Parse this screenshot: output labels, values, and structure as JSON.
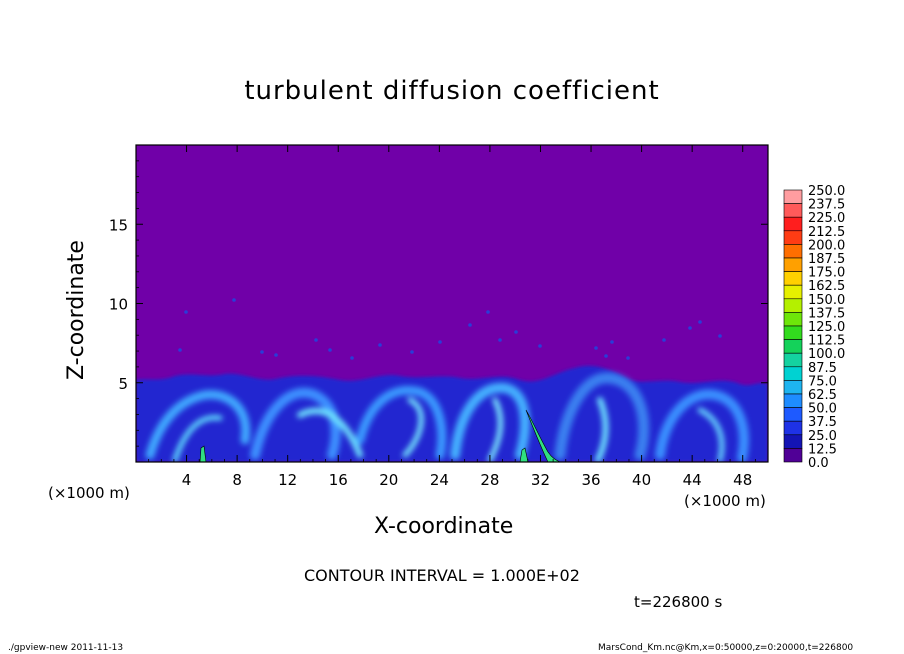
{
  "chart_data": {
    "type": "heatmap",
    "title": "turbulent diffusion coefficient",
    "xlabel": "X-coordinate",
    "ylabel": "Z-coordinate",
    "x_unit_label": "(×1000 m)",
    "x_unit_label_right": "(×1000 m)",
    "xlim": [
      0,
      50
    ],
    "ylim": [
      0,
      20
    ],
    "x_ticks": [
      "4",
      "8",
      "12",
      "16",
      "20",
      "24",
      "28",
      "32",
      "36",
      "40",
      "44",
      "48"
    ],
    "y_ticks": [
      "5",
      "10",
      "15"
    ],
    "x_tick_values": [
      4,
      8,
      12,
      16,
      20,
      24,
      28,
      32,
      36,
      40,
      44,
      48
    ],
    "y_tick_values": [
      5,
      10,
      15
    ],
    "colorbar": {
      "levels": [
        "250.0",
        "237.5",
        "225.0",
        "212.5",
        "200.0",
        "187.5",
        "175.0",
        "162.5",
        "150.0",
        "137.5",
        "125.0",
        "112.5",
        "100.0",
        "87.5",
        "75.0",
        "62.5",
        "50.0",
        "37.5",
        "25.0",
        "12.5",
        "0.0"
      ],
      "colors": [
        "#ff9da0",
        "#ff5a5a",
        "#ff1e1e",
        "#ff3c14",
        "#ff6e00",
        "#ffa000",
        "#ffd000",
        "#e6f000",
        "#b4f000",
        "#6ee60a",
        "#32dc1e",
        "#14d25a",
        "#14d2a0",
        "#00d2d2",
        "#1eb4f0",
        "#1e8cff",
        "#1e5aff",
        "#1e32e6",
        "#1414b4",
        "#500096"
      ]
    },
    "contour_interval": "CONTOUR INTERVAL = 1.000E+02",
    "time_label": "t=226800 s",
    "background_value_color": "#7000a8",
    "turbulent_layer_top_z": 5
  },
  "footer": {
    "left": "./gpview-new   2011-11-13",
    "right": "MarsCond_Km.nc@Km,x=0:50000,z=0:20000,t=226800"
  }
}
